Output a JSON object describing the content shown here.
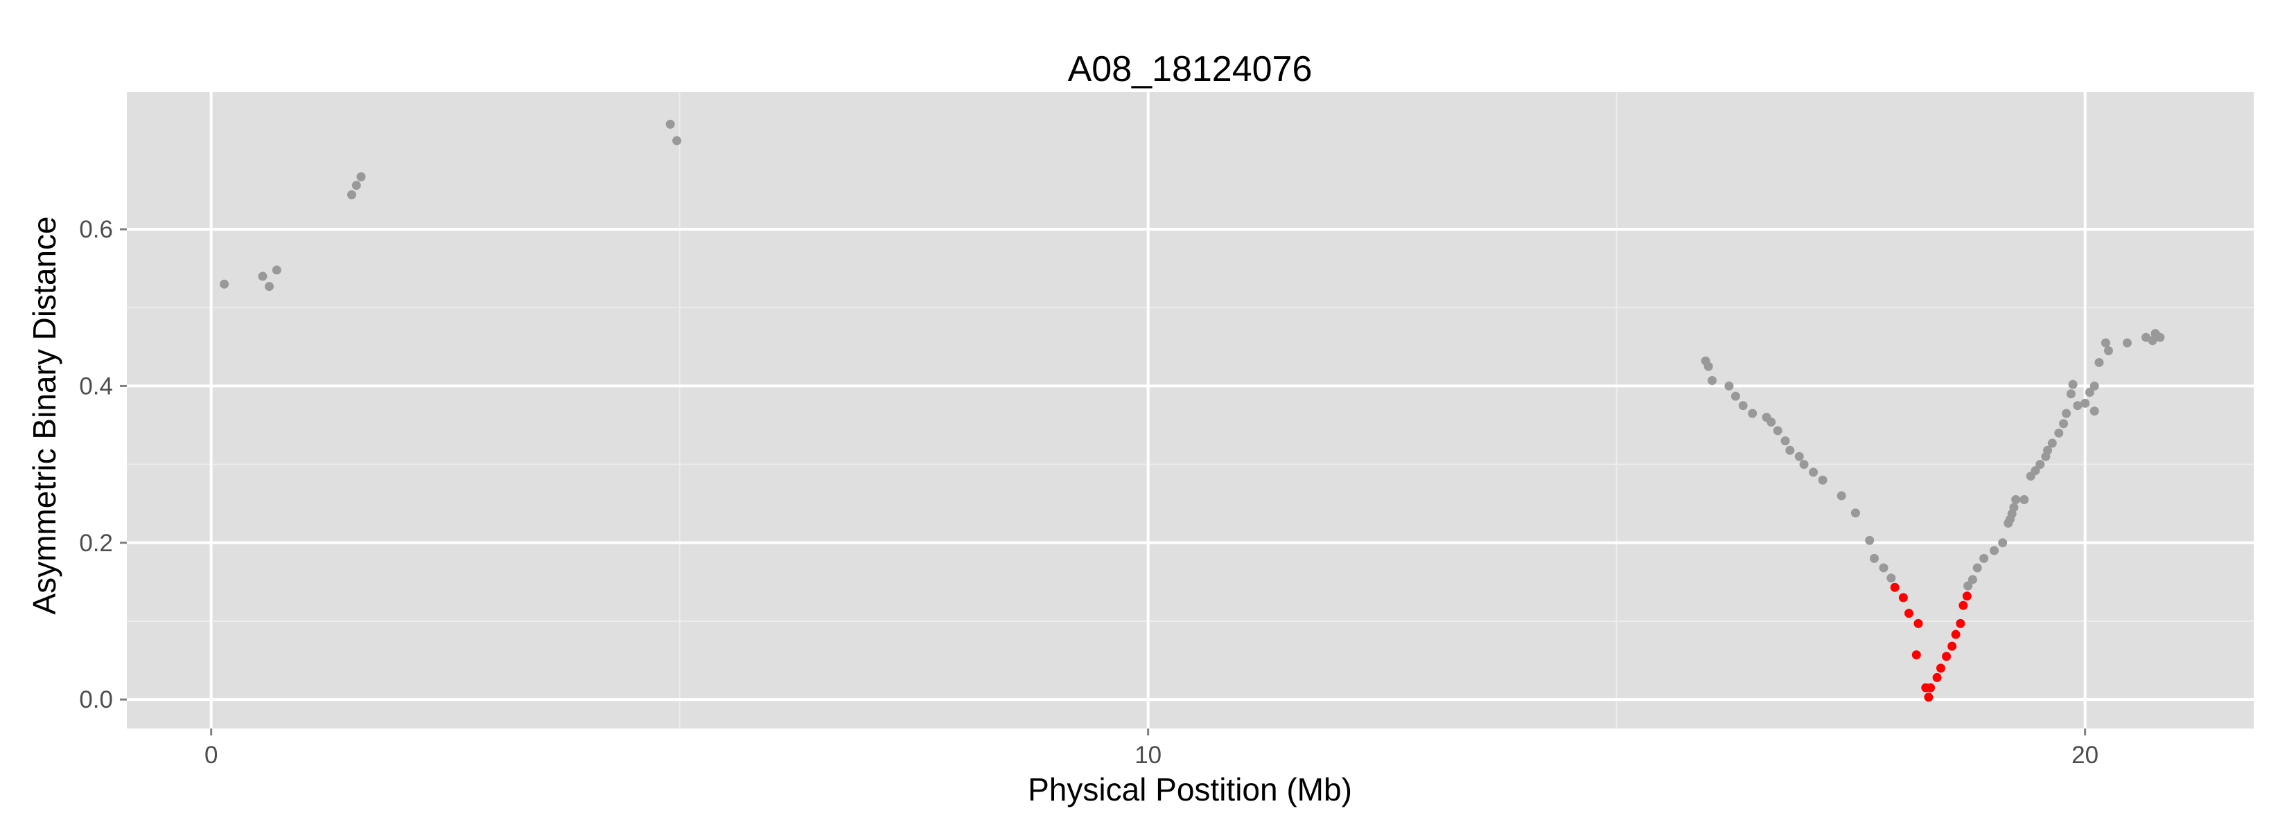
{
  "chart_data": {
    "type": "scatter",
    "title": "A08_18124076",
    "xlabel": "Physical Postition (Mb)",
    "ylabel": "Asymmetric Binary Distance",
    "xlim": [
      -0.9,
      21.8
    ],
    "ylim": [
      -0.037,
      0.775
    ],
    "x_ticks": [
      0,
      10,
      20
    ],
    "x_tick_labels": [
      "0",
      "10",
      "20"
    ],
    "y_ticks": [
      0.0,
      0.2,
      0.4,
      0.6
    ],
    "y_tick_labels": [
      "0.0",
      "0.2",
      "0.4",
      "0.6"
    ],
    "grid": true,
    "legend": "none",
    "colors": {
      "panel_background": "#dfdfdf",
      "grid_major": "#ffffff",
      "grid_minor": "#ececec",
      "points_default": "#999999",
      "points_highlight": "#ff0000"
    },
    "series": [
      {
        "color": "#999999",
        "points": [
          [
            0.14,
            0.53
          ],
          [
            0.55,
            0.54
          ],
          [
            0.62,
            0.527
          ],
          [
            0.7,
            0.548
          ],
          [
            1.5,
            0.644
          ],
          [
            1.55,
            0.656
          ],
          [
            1.6,
            0.667
          ],
          [
            4.9,
            0.734
          ],
          [
            4.97,
            0.713
          ],
          [
            15.95,
            0.432
          ],
          [
            15.98,
            0.425
          ],
          [
            16.02,
            0.407
          ],
          [
            16.2,
            0.4
          ],
          [
            16.27,
            0.387
          ],
          [
            16.35,
            0.375
          ],
          [
            16.45,
            0.365
          ],
          [
            16.6,
            0.36
          ],
          [
            16.65,
            0.354
          ],
          [
            16.72,
            0.343
          ],
          [
            16.8,
            0.33
          ],
          [
            16.85,
            0.318
          ],
          [
            16.95,
            0.31
          ],
          [
            17.0,
            0.3
          ],
          [
            17.1,
            0.29
          ],
          [
            17.2,
            0.28
          ],
          [
            17.4,
            0.26
          ],
          [
            17.55,
            0.238
          ],
          [
            17.7,
            0.203
          ],
          [
            17.75,
            0.18
          ],
          [
            17.85,
            0.168
          ],
          [
            17.93,
            0.155
          ],
          [
            18.75,
            0.145
          ],
          [
            18.8,
            0.153
          ],
          [
            18.85,
            0.168
          ],
          [
            18.92,
            0.18
          ],
          [
            19.03,
            0.19
          ],
          [
            19.12,
            0.2
          ],
          [
            19.18,
            0.225
          ],
          [
            19.2,
            0.23
          ],
          [
            19.22,
            0.237
          ],
          [
            19.24,
            0.245
          ],
          [
            19.26,
            0.255
          ],
          [
            19.35,
            0.255
          ],
          [
            19.42,
            0.285
          ],
          [
            19.47,
            0.292
          ],
          [
            19.52,
            0.3
          ],
          [
            19.58,
            0.31
          ],
          [
            19.6,
            0.318
          ],
          [
            19.65,
            0.327
          ],
          [
            19.72,
            0.34
          ],
          [
            19.77,
            0.352
          ],
          [
            19.8,
            0.365
          ],
          [
            19.85,
            0.39
          ],
          [
            19.87,
            0.402
          ],
          [
            19.92,
            0.375
          ],
          [
            20.1,
            0.368
          ],
          [
            20.0,
            0.378
          ],
          [
            20.05,
            0.392
          ],
          [
            20.1,
            0.4
          ],
          [
            20.15,
            0.43
          ],
          [
            20.22,
            0.455
          ],
          [
            20.25,
            0.445
          ],
          [
            20.45,
            0.455
          ],
          [
            20.65,
            0.462
          ],
          [
            20.72,
            0.458
          ],
          [
            20.75,
            0.467
          ],
          [
            20.8,
            0.462
          ]
        ]
      },
      {
        "color": "#ff0000",
        "points": [
          [
            17.97,
            0.143
          ],
          [
            18.06,
            0.13
          ],
          [
            18.12,
            0.11
          ],
          [
            18.22,
            0.097
          ],
          [
            18.2,
            0.057
          ],
          [
            18.3,
            0.015
          ],
          [
            18.33,
            0.003
          ],
          [
            18.35,
            0.015
          ],
          [
            18.42,
            0.028
          ],
          [
            18.46,
            0.04
          ],
          [
            18.52,
            0.055
          ],
          [
            18.58,
            0.068
          ],
          [
            18.62,
            0.083
          ],
          [
            18.67,
            0.097
          ],
          [
            18.7,
            0.12
          ],
          [
            18.74,
            0.132
          ]
        ]
      }
    ]
  }
}
